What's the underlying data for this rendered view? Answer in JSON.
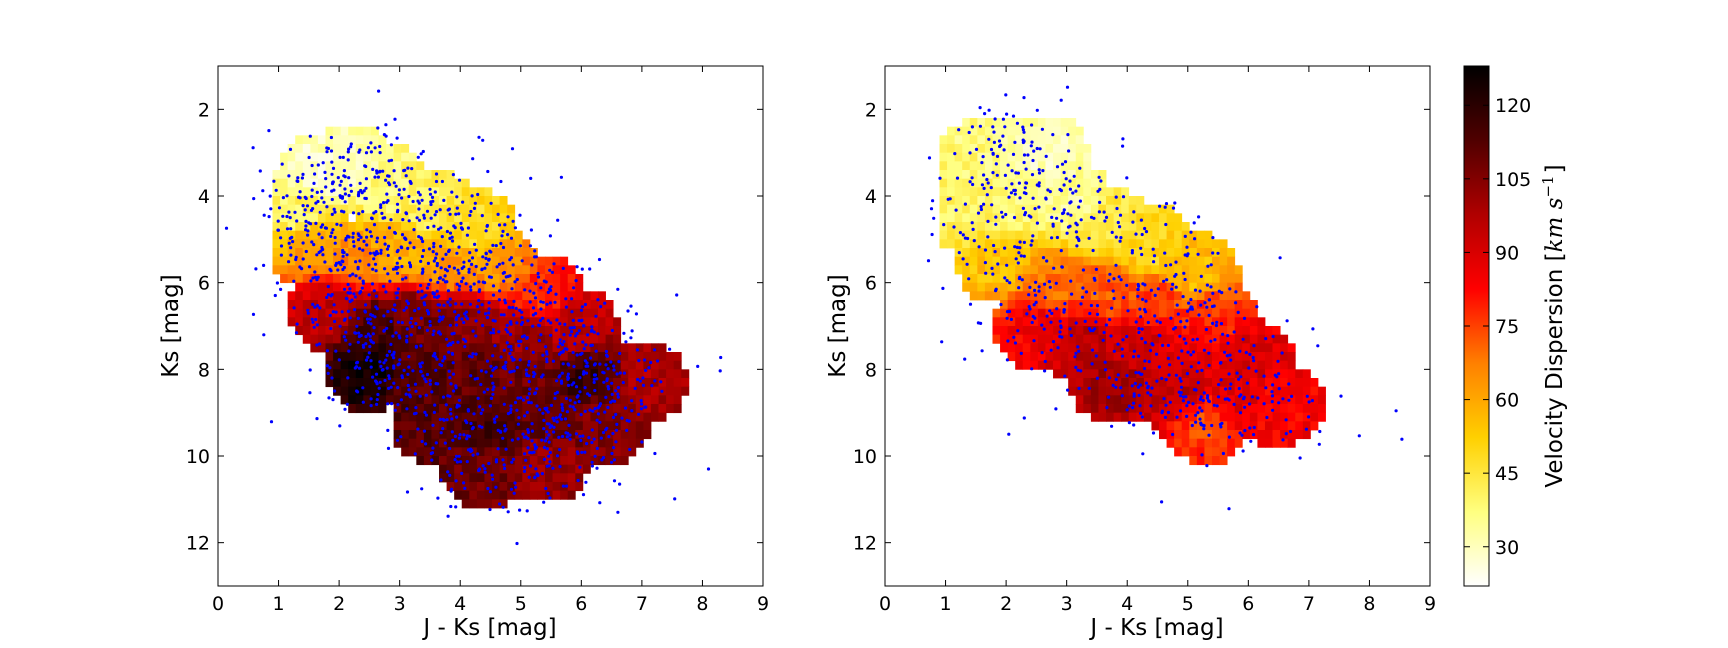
{
  "chart_data": [
    {
      "type": "scatter",
      "panel": "left",
      "overlay": "heatmap",
      "xlabel": "J - Ks [mag]",
      "ylabel": "Ks [mag]",
      "xlim": [
        0,
        9
      ],
      "ylim": [
        13,
        1
      ],
      "y_inverted": true,
      "x_ticks": [
        0,
        1,
        2,
        3,
        4,
        5,
        6,
        7,
        8,
        9
      ],
      "y_ticks": [
        2,
        4,
        6,
        8,
        10,
        12
      ],
      "point_color": "#0000ff",
      "heatmap_description": "Binned velocity dispersion (km/s) over the color-magnitude plane",
      "heatmap_bins": [
        {
          "x": 1.3,
          "y": 4.3,
          "v": 40
        },
        {
          "x": 1.7,
          "y": 3.5,
          "v": 28
        },
        {
          "x": 2.2,
          "y": 3.3,
          "v": 30
        },
        {
          "x": 2.8,
          "y": 3.8,
          "v": 38
        },
        {
          "x": 3.5,
          "y": 4.3,
          "v": 42
        },
        {
          "x": 4.2,
          "y": 4.8,
          "v": 48
        },
        {
          "x": 1.6,
          "y": 5.2,
          "v": 62
        },
        {
          "x": 2.3,
          "y": 5.5,
          "v": 66
        },
        {
          "x": 3.0,
          "y": 5.3,
          "v": 58
        },
        {
          "x": 3.8,
          "y": 5.6,
          "v": 62
        },
        {
          "x": 4.6,
          "y": 5.7,
          "v": 63
        },
        {
          "x": 5.3,
          "y": 6.3,
          "v": 78
        },
        {
          "x": 1.9,
          "y": 6.6,
          "v": 95
        },
        {
          "x": 2.6,
          "y": 7.0,
          "v": 115
        },
        {
          "x": 3.3,
          "y": 6.8,
          "v": 108
        },
        {
          "x": 4.1,
          "y": 6.9,
          "v": 104
        },
        {
          "x": 5.0,
          "y": 7.2,
          "v": 102
        },
        {
          "x": 5.9,
          "y": 7.1,
          "v": 95
        },
        {
          "x": 2.5,
          "y": 8.0,
          "v": 125
        },
        {
          "x": 3.3,
          "y": 8.1,
          "v": 112
        },
        {
          "x": 4.3,
          "y": 8.0,
          "v": 110
        },
        {
          "x": 5.2,
          "y": 8.2,
          "v": 108
        },
        {
          "x": 6.1,
          "y": 8.2,
          "v": 118
        },
        {
          "x": 7.0,
          "y": 8.3,
          "v": 98
        },
        {
          "x": 3.6,
          "y": 9.2,
          "v": 112
        },
        {
          "x": 4.5,
          "y": 9.4,
          "v": 115
        },
        {
          "x": 5.5,
          "y": 9.3,
          "v": 110
        },
        {
          "x": 6.4,
          "y": 9.2,
          "v": 105
        },
        {
          "x": 4.4,
          "y": 10.2,
          "v": 108
        },
        {
          "x": 5.4,
          "y": 10.1,
          "v": 100
        }
      ]
    },
    {
      "type": "scatter",
      "panel": "right",
      "overlay": "heatmap",
      "xlabel": "J - Ks [mag]",
      "ylabel": "Ks [mag]",
      "xlim": [
        0,
        9
      ],
      "ylim": [
        13,
        1
      ],
      "y_inverted": true,
      "x_ticks": [
        0,
        1,
        2,
        3,
        4,
        5,
        6,
        7,
        8,
        9
      ],
      "y_ticks": [
        2,
        4,
        6,
        8,
        10,
        12
      ],
      "point_color": "#0000ff",
      "heatmap_description": "Binned velocity dispersion (km/s) over the color-magnitude plane",
      "heatmap_bins": [
        {
          "x": 1.6,
          "y": 3.2,
          "v": 38
        },
        {
          "x": 2.1,
          "y": 2.8,
          "v": 34
        },
        {
          "x": 2.6,
          "y": 3.0,
          "v": 30
        },
        {
          "x": 1.4,
          "y": 4.3,
          "v": 40
        },
        {
          "x": 2.2,
          "y": 4.2,
          "v": 38
        },
        {
          "x": 3.0,
          "y": 4.1,
          "v": 34
        },
        {
          "x": 3.7,
          "y": 4.8,
          "v": 45
        },
        {
          "x": 4.4,
          "y": 5.2,
          "v": 50
        },
        {
          "x": 5.1,
          "y": 5.8,
          "v": 55
        },
        {
          "x": 1.9,
          "y": 5.5,
          "v": 55
        },
        {
          "x": 2.7,
          "y": 6.0,
          "v": 68
        },
        {
          "x": 3.6,
          "y": 6.2,
          "v": 72
        },
        {
          "x": 4.5,
          "y": 6.4,
          "v": 75
        },
        {
          "x": 5.4,
          "y": 6.8,
          "v": 78
        },
        {
          "x": 2.5,
          "y": 7.0,
          "v": 85
        },
        {
          "x": 3.3,
          "y": 7.4,
          "v": 95
        },
        {
          "x": 4.2,
          "y": 7.5,
          "v": 92
        },
        {
          "x": 5.1,
          "y": 7.6,
          "v": 88
        },
        {
          "x": 6.0,
          "y": 7.8,
          "v": 90
        },
        {
          "x": 3.8,
          "y": 8.3,
          "v": 100
        },
        {
          "x": 4.8,
          "y": 8.5,
          "v": 95
        },
        {
          "x": 5.8,
          "y": 8.7,
          "v": 88
        },
        {
          "x": 6.5,
          "y": 8.8,
          "v": 84
        },
        {
          "x": 5.3,
          "y": 9.2,
          "v": 75
        }
      ]
    }
  ],
  "colorbar": {
    "label": "Velocity Dispersion [km s^-1]",
    "label_text": "Velocity Dispersion [",
    "label_math_base": "km s",
    "label_math_sup": "−1",
    "label_close": "]",
    "range": [
      22,
      128
    ],
    "ticks": [
      "30",
      "45",
      "60",
      "75",
      "90",
      "105",
      "120"
    ],
    "tick_values": [
      30,
      45,
      60,
      75,
      90,
      105,
      120
    ],
    "colormap": "afmhot_r",
    "colormap_stops": [
      "#ffffff",
      "#ffff80",
      "#ffd000",
      "#ff8000",
      "#ff0000",
      "#b00000",
      "#500000",
      "#000000"
    ]
  }
}
